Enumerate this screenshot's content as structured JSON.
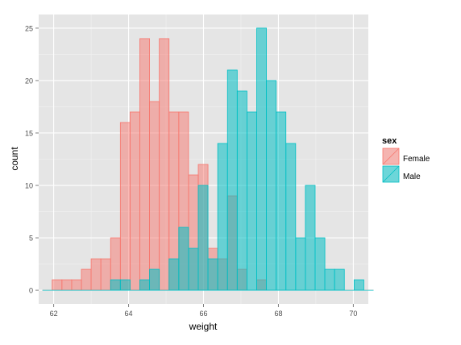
{
  "chart_data": {
    "type": "bar",
    "subtype": "overlapping-histogram",
    "title": "",
    "xlabel": "weight",
    "ylabel": "count",
    "xlim": [
      61.6,
      70.4
    ],
    "ylim": [
      -1.3,
      26.3
    ],
    "xticks": [
      62,
      64,
      66,
      68,
      70
    ],
    "xtick_labels": [
      "62",
      "64",
      "66",
      "68",
      "70"
    ],
    "yticks": [
      0,
      5,
      10,
      15,
      20,
      25
    ],
    "ytick_labels": [
      "0",
      "5",
      "10",
      "15",
      "20",
      "25"
    ],
    "grid": true,
    "bin_width": 0.26,
    "bin_start": 61.7,
    "legend": {
      "title": "sex",
      "placement": "right",
      "entries": [
        "Female",
        "Male"
      ]
    },
    "series": [
      {
        "name": "Female",
        "fill": "#F8766D",
        "fill_opacity": 0.5,
        "stroke": "#F8766D",
        "counts": [
          0,
          1,
          1,
          1,
          2,
          3,
          3,
          5,
          16,
          17,
          24,
          18,
          24,
          17,
          17,
          11,
          12,
          4,
          3,
          9,
          2,
          0,
          1,
          0,
          0,
          0,
          0,
          0,
          0,
          0,
          0,
          0,
          0,
          0
        ]
      },
      {
        "name": "Male",
        "fill": "#00BFC4",
        "fill_opacity": 0.55,
        "stroke": "#00BFC4",
        "counts": [
          0,
          0,
          0,
          0,
          0,
          0,
          0,
          1,
          1,
          0,
          1,
          2,
          0,
          3,
          6,
          4,
          10,
          3,
          14,
          21,
          19,
          17,
          25,
          20,
          17,
          14,
          5,
          10,
          5,
          2,
          2,
          0,
          1,
          0
        ]
      }
    ]
  },
  "colors": {
    "panel_bg": "#E5E5E5",
    "grid_major": "#FFFFFF",
    "grid_minor": "#F2F2F2",
    "text": "#4D4D4D",
    "axis_title": "#000000"
  }
}
